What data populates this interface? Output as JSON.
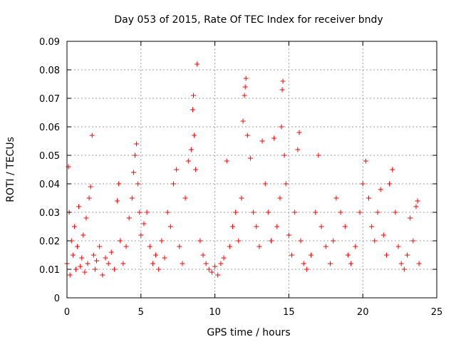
{
  "chart_data": {
    "type": "scatter",
    "title": "Day 053 of 2015, Rate Of TEC Index for receiver bndy",
    "xlabel": "GPS time / hours",
    "ylabel": "ROTI / TECUs",
    "xlim": [
      0,
      25
    ],
    "ylim": [
      0,
      0.09
    ],
    "xticks": [
      "0",
      "5",
      "10",
      "15",
      "20",
      "25"
    ],
    "yticks": [
      "0",
      "0.01",
      "0.02",
      "0.03",
      "0.04",
      "0.05",
      "0.06",
      "0.07",
      "0.08",
      "0.09"
    ],
    "grid": true,
    "marker": "+",
    "color": "#ff0000",
    "points": [
      [
        0.0,
        0.012
      ],
      [
        0.1,
        0.046
      ],
      [
        0.15,
        0.03
      ],
      [
        0.2,
        0.008
      ],
      [
        0.3,
        0.02
      ],
      [
        0.4,
        0.015
      ],
      [
        0.5,
        0.025
      ],
      [
        0.6,
        0.01
      ],
      [
        0.7,
        0.018
      ],
      [
        0.8,
        0.032
      ],
      [
        0.9,
        0.011
      ],
      [
        1.0,
        0.014
      ],
      [
        1.1,
        0.022
      ],
      [
        1.2,
        0.009
      ],
      [
        1.3,
        0.028
      ],
      [
        1.4,
        0.012
      ],
      [
        1.5,
        0.035
      ],
      [
        1.6,
        0.039
      ],
      [
        1.7,
        0.057
      ],
      [
        1.8,
        0.015
      ],
      [
        1.9,
        0.01
      ],
      [
        2.0,
        0.013
      ],
      [
        2.2,
        0.018
      ],
      [
        2.4,
        0.008
      ],
      [
        2.6,
        0.014
      ],
      [
        2.8,
        0.012
      ],
      [
        3.0,
        0.016
      ],
      [
        3.2,
        0.01
      ],
      [
        3.4,
        0.034
      ],
      [
        3.5,
        0.04
      ],
      [
        3.6,
        0.02
      ],
      [
        3.8,
        0.012
      ],
      [
        4.0,
        0.018
      ],
      [
        4.2,
        0.028
      ],
      [
        4.4,
        0.035
      ],
      [
        4.5,
        0.044
      ],
      [
        4.6,
        0.05
      ],
      [
        4.7,
        0.054
      ],
      [
        4.8,
        0.04
      ],
      [
        4.9,
        0.03
      ],
      [
        5.0,
        0.022
      ],
      [
        5.2,
        0.026
      ],
      [
        5.4,
        0.03
      ],
      [
        5.6,
        0.018
      ],
      [
        5.8,
        0.012
      ],
      [
        6.0,
        0.015
      ],
      [
        6.2,
        0.01
      ],
      [
        6.4,
        0.02
      ],
      [
        6.6,
        0.014
      ],
      [
        6.8,
        0.03
      ],
      [
        7.0,
        0.025
      ],
      [
        7.2,
        0.04
      ],
      [
        7.4,
        0.045
      ],
      [
        7.6,
        0.018
      ],
      [
        7.8,
        0.012
      ],
      [
        8.0,
        0.035
      ],
      [
        8.2,
        0.048
      ],
      [
        8.4,
        0.052
      ],
      [
        8.5,
        0.066
      ],
      [
        8.55,
        0.071
      ],
      [
        8.6,
        0.057
      ],
      [
        8.7,
        0.045
      ],
      [
        8.8,
        0.082
      ],
      [
        9.0,
        0.02
      ],
      [
        9.2,
        0.015
      ],
      [
        9.4,
        0.012
      ],
      [
        9.6,
        0.01
      ],
      [
        9.8,
        0.009
      ],
      [
        10.0,
        0.011
      ],
      [
        10.2,
        0.008
      ],
      [
        10.4,
        0.012
      ],
      [
        10.6,
        0.014
      ],
      [
        10.8,
        0.048
      ],
      [
        11.0,
        0.018
      ],
      [
        11.2,
        0.025
      ],
      [
        11.4,
        0.03
      ],
      [
        11.6,
        0.02
      ],
      [
        11.8,
        0.035
      ],
      [
        11.9,
        0.062
      ],
      [
        12.0,
        0.071
      ],
      [
        12.05,
        0.074
      ],
      [
        12.1,
        0.077
      ],
      [
        12.2,
        0.057
      ],
      [
        12.4,
        0.049
      ],
      [
        12.6,
        0.03
      ],
      [
        12.8,
        0.025
      ],
      [
        13.0,
        0.018
      ],
      [
        13.2,
        0.055
      ],
      [
        13.4,
        0.04
      ],
      [
        13.6,
        0.03
      ],
      [
        13.8,
        0.02
      ],
      [
        14.0,
        0.056
      ],
      [
        14.2,
        0.025
      ],
      [
        14.4,
        0.035
      ],
      [
        14.5,
        0.06
      ],
      [
        14.55,
        0.073
      ],
      [
        14.6,
        0.076
      ],
      [
        14.7,
        0.05
      ],
      [
        14.8,
        0.04
      ],
      [
        15.0,
        0.022
      ],
      [
        15.2,
        0.015
      ],
      [
        15.4,
        0.03
      ],
      [
        15.6,
        0.052
      ],
      [
        15.7,
        0.058
      ],
      [
        15.8,
        0.02
      ],
      [
        16.0,
        0.012
      ],
      [
        16.2,
        0.01
      ],
      [
        16.5,
        0.015
      ],
      [
        16.8,
        0.03
      ],
      [
        17.0,
        0.05
      ],
      [
        17.2,
        0.025
      ],
      [
        17.5,
        0.018
      ],
      [
        17.8,
        0.012
      ],
      [
        18.0,
        0.02
      ],
      [
        18.2,
        0.035
      ],
      [
        18.5,
        0.03
      ],
      [
        18.8,
        0.025
      ],
      [
        19.0,
        0.015
      ],
      [
        19.2,
        0.012
      ],
      [
        19.5,
        0.018
      ],
      [
        19.8,
        0.03
      ],
      [
        20.0,
        0.04
      ],
      [
        20.2,
        0.048
      ],
      [
        20.4,
        0.035
      ],
      [
        20.6,
        0.025
      ],
      [
        20.8,
        0.02
      ],
      [
        21.0,
        0.03
      ],
      [
        21.2,
        0.038
      ],
      [
        21.4,
        0.022
      ],
      [
        21.6,
        0.015
      ],
      [
        21.8,
        0.04
      ],
      [
        22.0,
        0.045
      ],
      [
        22.2,
        0.03
      ],
      [
        22.4,
        0.018
      ],
      [
        22.6,
        0.012
      ],
      [
        22.8,
        0.01
      ],
      [
        23.0,
        0.015
      ],
      [
        23.2,
        0.028
      ],
      [
        23.4,
        0.02
      ],
      [
        23.6,
        0.032
      ],
      [
        23.7,
        0.034
      ],
      [
        23.8,
        0.012
      ]
    ]
  }
}
